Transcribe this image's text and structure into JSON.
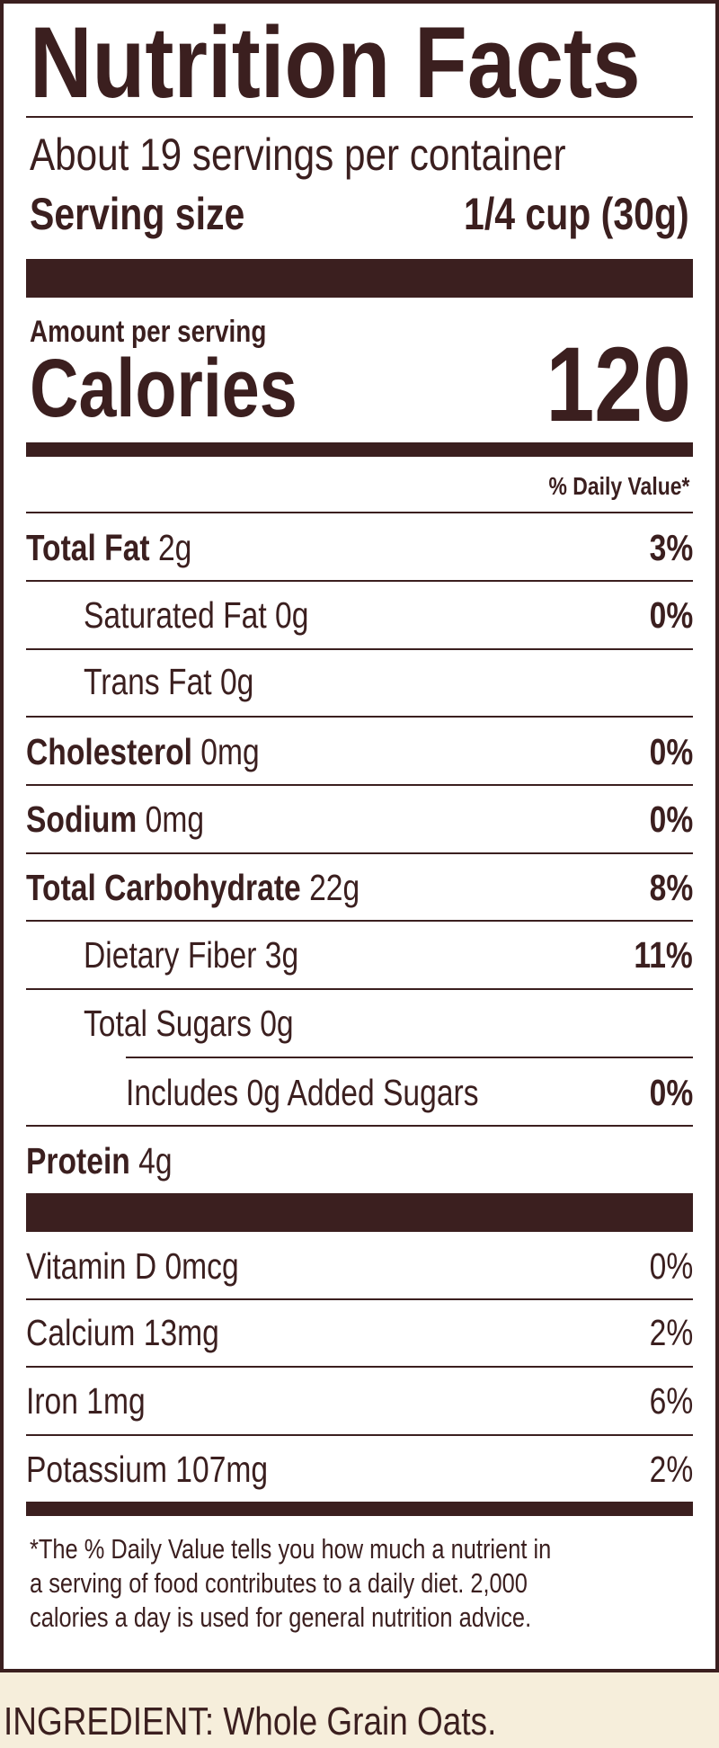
{
  "title": "Nutrition Facts",
  "servings_per_container": "About 19 servings per container",
  "serving_size": {
    "label": "Serving size",
    "value": "1/4 cup (30g)"
  },
  "amount_per_serving": "Amount per serving",
  "calories": {
    "label": "Calories",
    "value": "120"
  },
  "daily_value_header": "% Daily Value*",
  "nutrients": [
    {
      "name": "Total Fat",
      "amount": "2g",
      "dv": "3%"
    },
    {
      "name": "Saturated Fat 0g",
      "amount": "",
      "dv": "0%"
    },
    {
      "name": "Trans Fat 0g",
      "amount": "",
      "dv": ""
    },
    {
      "name": "Cholesterol",
      "amount": "0mg",
      "dv": "0%"
    },
    {
      "name": "Sodium",
      "amount": "0mg",
      "dv": "0%"
    },
    {
      "name": "Total Carbohydrate",
      "amount": "22g",
      "dv": "8%"
    },
    {
      "name": "Dietary Fiber 3g",
      "amount": "",
      "dv": "11%"
    },
    {
      "name": "Total Sugars 0g",
      "amount": "",
      "dv": ""
    },
    {
      "name": "Includes 0g Added Sugars",
      "amount": "",
      "dv": "0%"
    },
    {
      "name": "Protein",
      "amount": "4g",
      "dv": ""
    }
  ],
  "vitamins": [
    {
      "name": "Vitamin D 0mcg",
      "dv": "0%"
    },
    {
      "name": "Calcium 13mg",
      "dv": "2%"
    },
    {
      "name": "Iron 1mg",
      "dv": "6%"
    },
    {
      "name": "Potassium 107mg",
      "dv": "2%"
    }
  ],
  "footnote": [
    "*The % Daily Value tells you how much a nutrient in",
    "a serving of food contributes to a daily diet. 2,000",
    "calories a day is used for general nutrition advice."
  ],
  "ingredients": "INGREDIENT: Whole Grain Oats.",
  "colors": {
    "ink": "#3b1f1f",
    "background": "#f6eedb"
  }
}
